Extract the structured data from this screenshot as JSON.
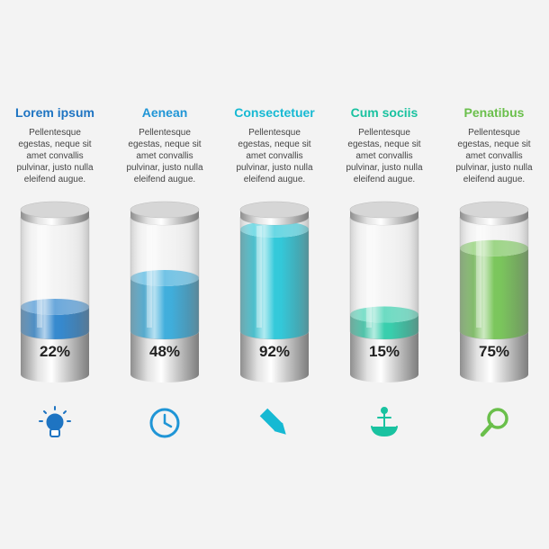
{
  "chart_data": {
    "type": "bar",
    "categories": [
      "Lorem ipsum",
      "Aenean",
      "Consectetuer",
      "Cum sociis",
      "Penatibus"
    ],
    "values": [
      22,
      48,
      92,
      15,
      75
    ],
    "value_labels": [
      "22%",
      "48%",
      "92%",
      "15%",
      "75%"
    ],
    "ylim": [
      0,
      100
    ],
    "descriptions": [
      [
        "Pellentesque",
        "egestas, neque sit",
        "amet convallis",
        "pulvinar, justo nulla",
        "eleifend augue."
      ],
      [
        "Pellentesque",
        "egestas, neque sit",
        "amet convallis",
        "pulvinar, justo nulla",
        "eleifend augue."
      ],
      [
        "Pellentesque",
        "egestas, neque sit",
        "amet convallis",
        "pulvinar, justo nulla",
        "eleifend augue."
      ],
      [
        "Pellentesque",
        "egestas, neque sit",
        "amet convallis",
        "pulvinar, justo nulla",
        "eleifend augue."
      ],
      [
        "Pellentesque",
        "egestas, neque sit",
        "amet convallis",
        "pulvinar, justo nulla",
        "eleifend augue."
      ]
    ],
    "colors": [
      "#1f7cc9",
      "#2aa5d8",
      "#1cc3d6",
      "#22c9a4",
      "#6cc04a"
    ],
    "title_colors": [
      "#1e74c2",
      "#1f95d6",
      "#16b9d3",
      "#19c2a0",
      "#6abf4b"
    ],
    "icons": [
      "lightbulb-icon",
      "clock-icon",
      "pencil-icon",
      "anchor-icon",
      "magnifier-icon"
    ]
  }
}
